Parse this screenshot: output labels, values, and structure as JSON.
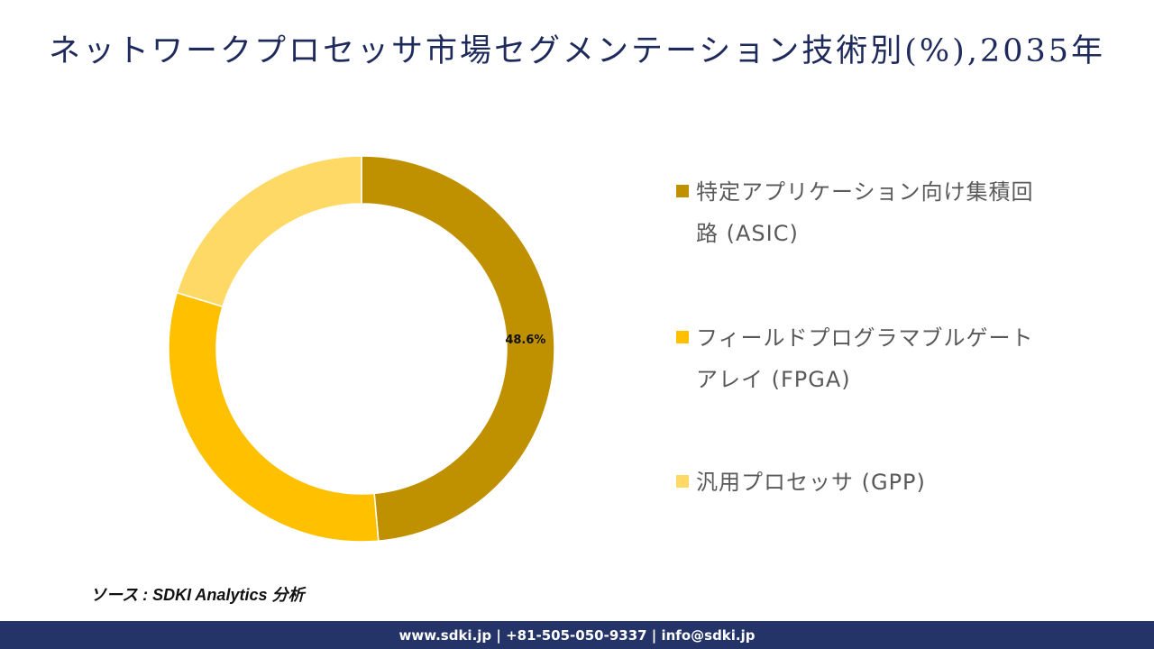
{
  "title": "ネットワークプロセッサ市場セグメンテーション技術別(%),2035年",
  "chart_data": {
    "type": "pie",
    "subtype": "donut",
    "title": "ネットワークプロセッサ市場セグメンテーション技術別(%),2035年",
    "categories": [
      "特定アプリケーション向け集積回路 (ASIC)",
      "フィールドプログラマブルゲートアレイ (FPGA)",
      "汎用プロセッサ (GPP)"
    ],
    "values": [
      48.6,
      31.1,
      20.3
    ],
    "colors": [
      "#BF9000",
      "#FFC000",
      "#FFD966"
    ],
    "data_labels": [
      "48.6%",
      "",
      ""
    ],
    "legend_position": "right",
    "start_angle": 0,
    "direction": "clockwise"
  },
  "legend": {
    "items": [
      {
        "label": "特定アプリケーション向け集積回路 (ASIC)",
        "line1": "特定アプリケーション向け集積回",
        "line2": "路 (ASIC)",
        "color": "#BF9000"
      },
      {
        "label": "フィールドプログラマブルゲートアレイ (FPGA)",
        "line1": "フィールドプログラマブルゲート",
        "line2": "アレイ (FPGA)",
        "color": "#FFC000"
      },
      {
        "label": "汎用プロセッサ (GPP)",
        "line1": "汎用プロセッサ (GPP)",
        "line2": "",
        "color": "#FFD966"
      }
    ]
  },
  "source": "ソース : SDKI Analytics 分析",
  "footer": {
    "text": "www.sdki.jp | +81-505-050-9337 | info@sdki.jp"
  }
}
